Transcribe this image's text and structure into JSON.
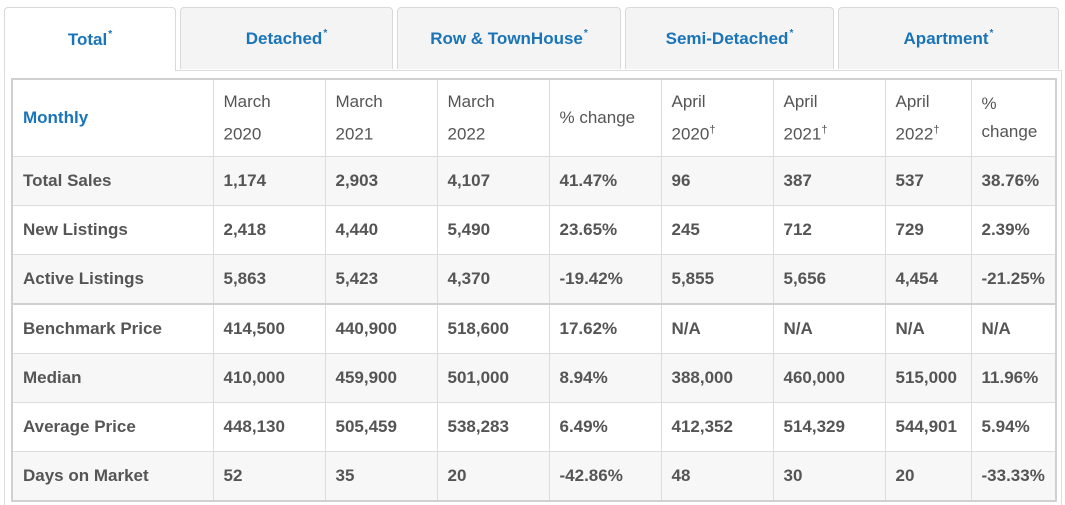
{
  "tabs": [
    {
      "label": "Total",
      "mark": "*"
    },
    {
      "label": "Detached",
      "mark": "*"
    },
    {
      "label": "Row & TownHouse",
      "mark": "*"
    },
    {
      "label": "Semi-Detached",
      "mark": "*"
    },
    {
      "label": "Apartment",
      "mark": "*"
    }
  ],
  "table": {
    "corner": "Monthly",
    "columns": [
      {
        "line1": "March",
        "line2": "2020",
        "mark": ""
      },
      {
        "line1": "March",
        "line2": "2021",
        "mark": ""
      },
      {
        "line1": "March",
        "line2": "2022",
        "mark": ""
      },
      {
        "line1": "% change",
        "line2": "",
        "mark": ""
      },
      {
        "line1": "April",
        "line2": "2020",
        "mark": "†"
      },
      {
        "line1": "April",
        "line2": "2021",
        "mark": "†"
      },
      {
        "line1": "April",
        "line2": "2022",
        "mark": "†"
      },
      {
        "line1": "%",
        "line2": "change",
        "mark": ""
      }
    ],
    "rows": [
      {
        "label": "Total Sales",
        "cells": [
          "1,174",
          "2,903",
          "4,107",
          "41.47%",
          "96",
          "387",
          "537",
          "38.76%"
        ]
      },
      {
        "label": "New Listings",
        "cells": [
          "2,418",
          "4,440",
          "5,490",
          "23.65%",
          "245",
          "712",
          "729",
          "2.39%"
        ]
      },
      {
        "label": "Active Listings",
        "cells": [
          "5,863",
          "5,423",
          "4,370",
          "-19.42%",
          "5,855",
          "5,656",
          "4,454",
          "-21.25%"
        ]
      },
      {
        "label": "Benchmark Price",
        "cells": [
          "414,500",
          "440,900",
          "518,600",
          "17.62%",
          "N/A",
          "N/A",
          "N/A",
          "N/A"
        ]
      },
      {
        "label": "Median",
        "cells": [
          "410,000",
          "459,900",
          "501,000",
          "8.94%",
          "388,000",
          "460,000",
          "515,000",
          "11.96%"
        ]
      },
      {
        "label": "Average Price",
        "cells": [
          "448,130",
          "505,459",
          "538,283",
          "6.49%",
          "412,352",
          "514,329",
          "544,901",
          "5.94%"
        ]
      },
      {
        "label": "Days on Market",
        "cells": [
          "52",
          "35",
          "20",
          "-42.86%",
          "48",
          "30",
          "20",
          "-33.33%"
        ]
      }
    ]
  }
}
